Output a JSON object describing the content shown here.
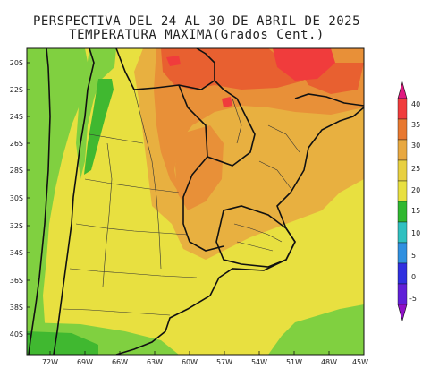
{
  "title": {
    "line1": "PERSPECTIVA DEL 24 AL 30 DE ABRIL DE 2025",
    "line2": "TEMPERATURA MAXIMA(Grados Cent.)"
  },
  "map": {
    "lat_labels": [
      "20S",
      "22S",
      "24S",
      "26S",
      "28S",
      "30S",
      "32S",
      "34S",
      "36S",
      "38S",
      "40S"
    ],
    "lon_labels": [
      "72W",
      "69W",
      "66W",
      "63W",
      "60W",
      "57W",
      "54W",
      "51W",
      "48W",
      "45W"
    ],
    "shading_colors": {
      "green": "#80d040",
      "dark_green": "#40b830",
      "yellow": "#e8e040",
      "light_orange": "#e8b040",
      "orange": "#e89038",
      "red_orange": "#e86030",
      "red": "#f03c3c"
    }
  },
  "legend": {
    "labels": [
      "40",
      "35",
      "30",
      "25",
      "20",
      "15",
      "10",
      "5",
      "0",
      "-5"
    ],
    "colors": [
      "#e01880",
      "#f03c3c",
      "#e87830",
      "#e8a840",
      "#e8d040",
      "#e8e040",
      "#30b830",
      "#30c0c0",
      "#3090e0",
      "#3030e0",
      "#9010c8"
    ]
  }
}
